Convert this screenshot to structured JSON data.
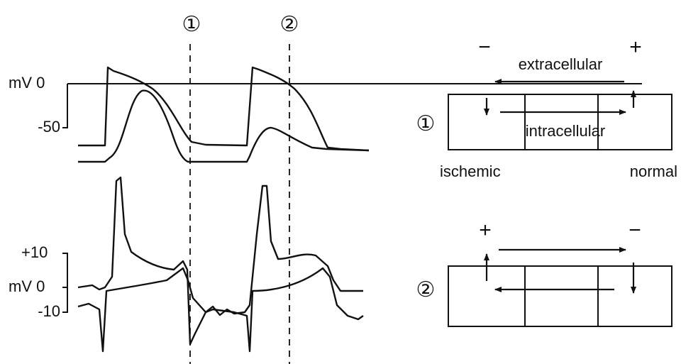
{
  "traces": {
    "markers": [
      "①",
      "②"
    ],
    "top_y_labels": [
      "mV 0",
      "-50"
    ],
    "bottom_y_labels": [
      "+10",
      "mV 0",
      "-10"
    ]
  },
  "panel_1": {
    "marker": "①",
    "left_sign": "−",
    "right_sign": "+",
    "extracellular": "extracellular",
    "intracellular": "intracellular",
    "left_label": "ischemic",
    "right_label": "normal"
  },
  "panel_2": {
    "marker": "②",
    "left_sign": "+",
    "right_sign": "−"
  }
}
